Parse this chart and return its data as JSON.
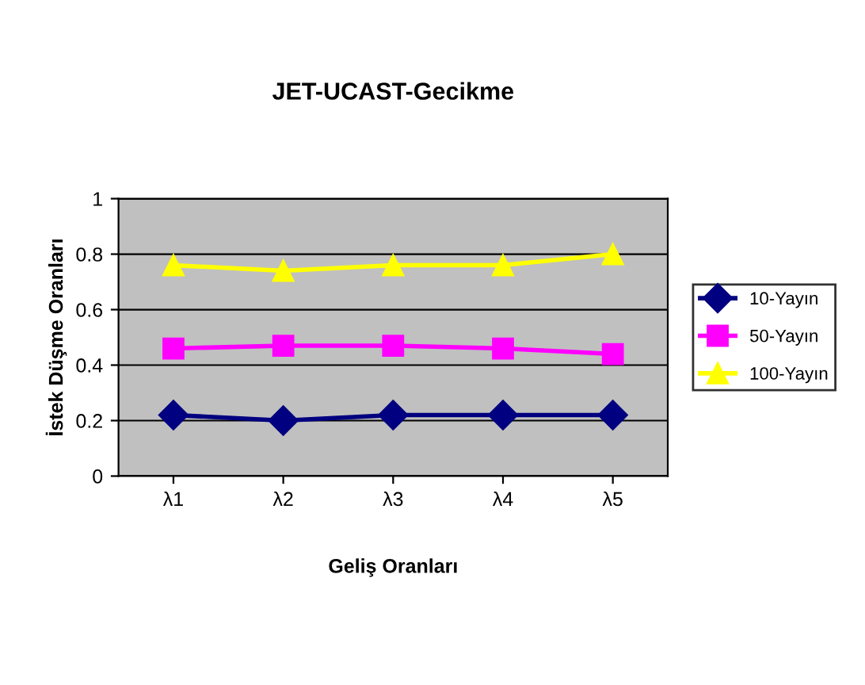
{
  "chart_data": {
    "type": "line",
    "title": "JET-UCAST-Gecikme",
    "xlabel": "Geliş Oranları",
    "ylabel": "İstek Düşme Oranları",
    "categories": [
      "λ1",
      "λ2",
      "λ3",
      "λ4",
      "λ5"
    ],
    "series": [
      {
        "name": "10-Yayın",
        "color": "#000080",
        "marker": "diamond",
        "values": [
          0.22,
          0.2,
          0.22,
          0.22,
          0.22
        ]
      },
      {
        "name": "50-Yayın",
        "color": "#ff00ff",
        "marker": "square",
        "values": [
          0.46,
          0.47,
          0.47,
          0.46,
          0.44
        ]
      },
      {
        "name": "100-Yayın",
        "color": "#ffff00",
        "marker": "triangle",
        "values": [
          0.76,
          0.74,
          0.76,
          0.76,
          0.8
        ]
      }
    ],
    "ylim": [
      0,
      1
    ],
    "yticks": [
      0,
      0.2,
      0.4,
      0.6,
      0.8,
      1
    ],
    "grid": "y",
    "legend": "right"
  }
}
